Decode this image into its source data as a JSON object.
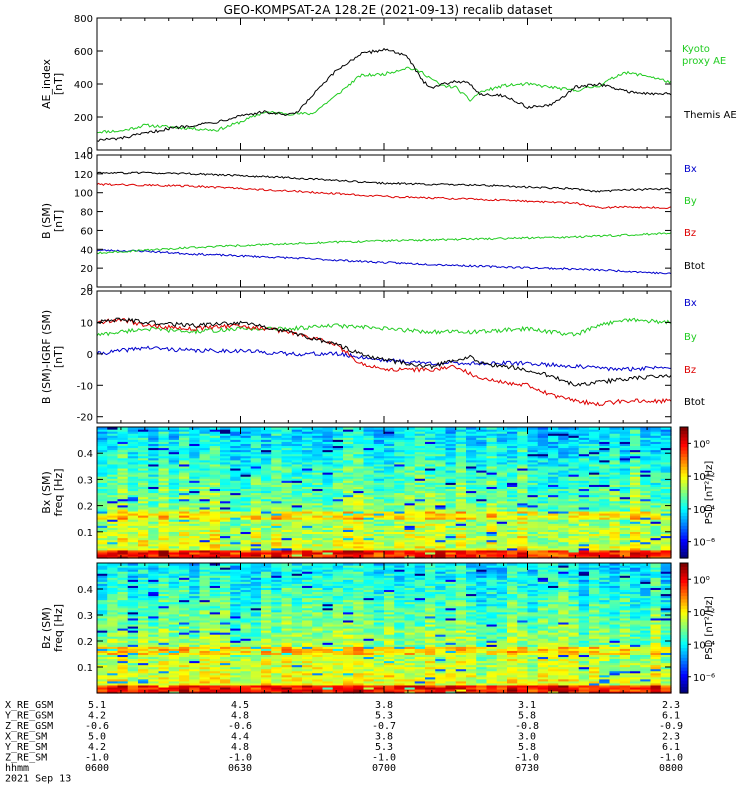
{
  "title": "GEO-KOMPSAT-2A 128.2E (2021-09-13) recalib dataset",
  "chart_data": [
    {
      "type": "line",
      "panel": "ae",
      "ylabel": "AE_index",
      "yunit": "[nT]",
      "ylim": [
        0,
        800
      ],
      "yticks": [
        0,
        200,
        400,
        600,
        800
      ],
      "xlim": [
        0,
        120
      ],
      "series": [
        {
          "name": "Kyoto proxy AE",
          "color": "#22cc22",
          "label_lines": [
            "Kyoto",
            "proxy AE"
          ],
          "x": [
            0,
            5,
            10,
            15,
            20,
            25,
            30,
            35,
            40,
            45,
            50,
            55,
            60,
            65,
            68,
            72,
            75,
            78,
            80,
            85,
            90,
            95,
            100,
            105,
            110,
            115,
            120
          ],
          "y": [
            110,
            115,
            150,
            140,
            130,
            120,
            170,
            230,
            220,
            220,
            330,
            450,
            460,
            500,
            470,
            390,
            380,
            300,
            350,
            390,
            400,
            380,
            360,
            390,
            470,
            450,
            410
          ]
        },
        {
          "name": "Themis AE",
          "color": "#000000",
          "x": [
            0,
            5,
            10,
            15,
            20,
            25,
            30,
            35,
            40,
            42,
            45,
            50,
            55,
            60,
            62,
            65,
            68,
            70,
            75,
            78,
            80,
            85,
            90,
            95,
            100,
            105,
            110,
            115,
            120
          ],
          "y": [
            60,
            70,
            100,
            130,
            150,
            170,
            210,
            230,
            210,
            230,
            330,
            480,
            580,
            610,
            600,
            560,
            420,
            380,
            420,
            400,
            340,
            330,
            260,
            270,
            380,
            400,
            360,
            340,
            340
          ]
        }
      ]
    },
    {
      "type": "line",
      "panel": "b_sm",
      "ylabel": "B (SM)",
      "yunit": "[nT]",
      "ylim": [
        0,
        140
      ],
      "yticks": [
        0,
        20,
        40,
        60,
        80,
        100,
        120,
        140
      ],
      "xlim": [
        0,
        120
      ],
      "series": [
        {
          "name": "Bx",
          "color": "#0000cc",
          "x": [
            0,
            10,
            20,
            40,
            60,
            80,
            100,
            110,
            120
          ],
          "y": [
            39,
            38,
            35,
            31,
            26,
            22,
            19,
            17,
            14
          ]
        },
        {
          "name": "By",
          "color": "#22cc22",
          "x": [
            0,
            10,
            20,
            40,
            60,
            80,
            100,
            110,
            120
          ],
          "y": [
            36,
            39,
            42,
            46,
            49,
            51,
            53,
            55,
            57
          ]
        },
        {
          "name": "Bz",
          "color": "#dd0000",
          "x": [
            0,
            10,
            20,
            40,
            60,
            80,
            100,
            105,
            110,
            120
          ],
          "y": [
            109,
            108,
            107,
            102,
            96,
            93,
            89,
            84,
            85,
            84
          ]
        },
        {
          "name": "Btot",
          "color": "#000000",
          "x": [
            0,
            10,
            20,
            40,
            60,
            80,
            100,
            105,
            110,
            120
          ],
          "y": [
            121,
            121,
            120,
            116,
            110,
            108,
            104,
            101,
            103,
            104
          ]
        }
      ]
    },
    {
      "type": "line",
      "panel": "b_diff",
      "ylabel": "B (SM)-IGRF (SM)",
      "yunit": "[nT]",
      "ylim": [
        -22,
        20
      ],
      "yticks": [
        -20,
        -10,
        0,
        10,
        20
      ],
      "xlim": [
        0,
        120
      ],
      "series": [
        {
          "name": "Bx",
          "color": "#0000cc",
          "x": [
            0,
            10,
            20,
            30,
            40,
            50,
            60,
            70,
            80,
            90,
            100,
            110,
            120
          ],
          "y": [
            0,
            2,
            1,
            1,
            0,
            0,
            -2,
            -3,
            -3,
            -3,
            -4,
            -5,
            -4
          ]
        },
        {
          "name": "By",
          "color": "#22cc22",
          "x": [
            0,
            10,
            20,
            30,
            40,
            50,
            60,
            70,
            80,
            90,
            100,
            105,
            110,
            120
          ],
          "y": [
            6,
            8,
            7,
            8,
            8,
            9,
            8,
            7,
            7,
            8,
            6,
            9,
            11,
            10
          ]
        },
        {
          "name": "Bz",
          "color": "#dd0000",
          "x": [
            0,
            5,
            10,
            20,
            30,
            40,
            50,
            55,
            60,
            70,
            75,
            80,
            90,
            95,
            100,
            105,
            110,
            120
          ],
          "y": [
            10,
            11,
            9,
            8,
            9,
            7,
            3,
            -3,
            -5,
            -5,
            -4,
            -8,
            -10,
            -13,
            -15,
            -16,
            -15,
            -15
          ]
        },
        {
          "name": "Btot",
          "color": "#000000",
          "x": [
            0,
            5,
            10,
            20,
            30,
            40,
            50,
            55,
            60,
            70,
            78,
            80,
            90,
            95,
            100,
            105,
            110,
            120
          ],
          "y": [
            10,
            11,
            10,
            9,
            10,
            7,
            3,
            0,
            -2,
            -4,
            -1,
            -3,
            -5,
            -7,
            -10,
            -9,
            -8,
            -7
          ]
        }
      ]
    },
    {
      "type": "heatmap",
      "panel": "spec_bx",
      "ylabel": "Bx (SM)",
      "yunit": "freq [Hz]",
      "ylim": [
        0,
        0.5
      ],
      "yticks": [
        0.1,
        0.2,
        0.3,
        0.4
      ],
      "xlim": [
        0,
        120
      ],
      "colorbar_label": "PSD [nT²/Hz]",
      "colorbar_ticks": [
        "10⁰",
        "10⁻²",
        "10⁻⁴",
        "10⁻⁶"
      ],
      "colorbar_log_range": [
        -7,
        1
      ]
    },
    {
      "type": "heatmap",
      "panel": "spec_bz",
      "ylabel": "Bz (SM)",
      "yunit": "freq [Hz]",
      "ylim": [
        0,
        0.5
      ],
      "yticks": [
        0.1,
        0.2,
        0.3,
        0.4
      ],
      "xlim": [
        0,
        120
      ],
      "colorbar_label": "PSD [nT²/Hz]",
      "colorbar_ticks": [
        "10⁰",
        "10⁻²",
        "10⁻⁴",
        "10⁻⁶"
      ],
      "colorbar_log_range": [
        -7,
        1
      ]
    }
  ],
  "ephemeris": {
    "rows": [
      {
        "label": "X_RE_GSM",
        "values": [
          "5.1",
          "4.5",
          "3.8",
          "3.1",
          "2.3"
        ]
      },
      {
        "label": "Y_RE_GSM",
        "values": [
          "4.2",
          "4.8",
          "5.3",
          "5.8",
          "6.1"
        ]
      },
      {
        "label": "Z_RE_GSM",
        "values": [
          "-0.6",
          "-0.6",
          "-0.7",
          "-0.8",
          "-0.9"
        ]
      },
      {
        "label": "X_RE_SM",
        "values": [
          "5.0",
          "4.4",
          "3.8",
          "3.0",
          "2.3"
        ]
      },
      {
        "label": "Y_RE_SM",
        "values": [
          "4.2",
          "4.8",
          "5.3",
          "5.8",
          "6.1"
        ]
      },
      {
        "label": "Z_RE_SM",
        "values": [
          "-1.0",
          "-1.0",
          "-1.0",
          "-1.0",
          "-1.0"
        ]
      },
      {
        "label": "hhmm",
        "values": [
          "0600",
          "0630",
          "0700",
          "0730",
          "0800"
        ]
      }
    ],
    "date": "2021 Sep 13"
  }
}
